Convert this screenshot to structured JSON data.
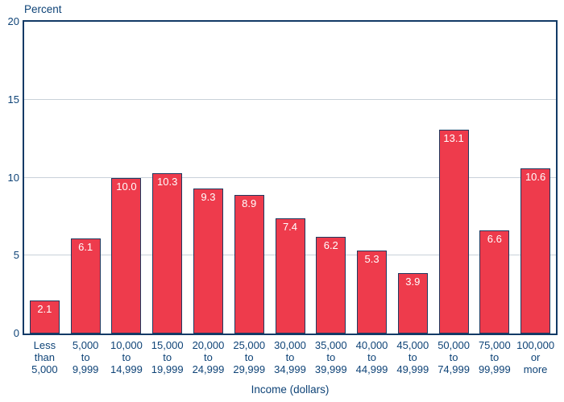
{
  "chart_data": {
    "type": "bar",
    "title": "",
    "ylabel": "Percent",
    "xlabel": "Income (dollars)",
    "ylim": [
      0,
      20
    ],
    "yticks": [
      0,
      5,
      10,
      15,
      20
    ],
    "gridlines": [
      5,
      10,
      15
    ],
    "grid": "horizontal",
    "legend_position": "none",
    "categories": [
      "Less\nthan\n5,000",
      "5,000\nto\n9,999",
      "10,000\nto\n14,999",
      "15,000\nto\n19,999",
      "20,000\nto\n24,999",
      "25,000\nto\n29,999",
      "30,000\nto\n34,999",
      "35,000\nto\n39,999",
      "40,000\nto\n44,999",
      "45,000\nto\n49,999",
      "50,000\nto\n74,999",
      "75,000\nto\n99,999",
      "100,000\nor\nmore"
    ],
    "values": [
      2.1,
      6.1,
      10.0,
      10.3,
      9.3,
      8.9,
      7.4,
      6.2,
      5.3,
      3.9,
      13.1,
      6.6,
      10.6
    ],
    "value_labels": [
      "2.1",
      "6.1",
      "10.0",
      "10.3",
      "9.3",
      "8.9",
      "7.4",
      "6.2",
      "5.3",
      "3.9",
      "13.1",
      "6.6",
      "10.6"
    ],
    "colors": {
      "bar_fill": "#ee3b4c",
      "bar_border": "#1f3a60",
      "axis_frame": "#123a66",
      "text": "#0e4377",
      "gridline": "#c9d1d9",
      "value_label": "#ffffff",
      "background": "#ffffff"
    }
  }
}
